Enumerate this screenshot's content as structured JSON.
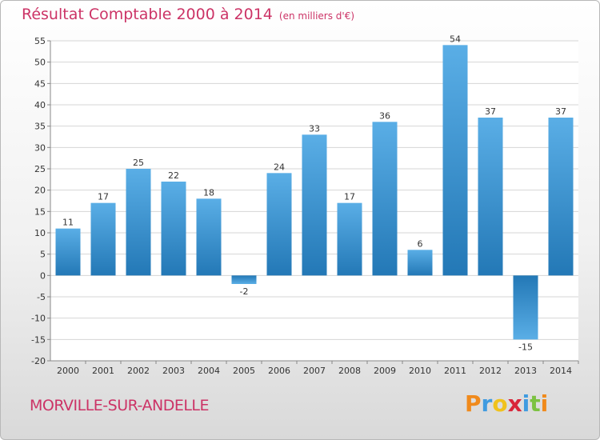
{
  "header": {
    "title": "Résultat Comptable 2000 à 2014",
    "unit": "(en milliers d'€)"
  },
  "footer": {
    "town": "MORVILLE-SUR-ANDELLE",
    "logo": [
      "P",
      "r",
      "o",
      "x",
      "i",
      "t",
      "i"
    ],
    "logo_colors": [
      "#f08a1c",
      "#3f9be0",
      "#f0c21c",
      "#d9263a",
      "#3f9be0",
      "#7cc242",
      "#f08a1c"
    ]
  },
  "colors": {
    "bar_light": "#5aaee6",
    "bar_dark": "#2378b6",
    "grid": "#d6d6d6",
    "axis": "#888888",
    "title": "#cc3366"
  },
  "chart_data": {
    "type": "bar",
    "categories": [
      "2000",
      "2001",
      "2002",
      "2003",
      "2004",
      "2005",
      "2006",
      "2007",
      "2008",
      "2009",
      "2010",
      "2011",
      "2012",
      "2013",
      "2014"
    ],
    "values": [
      11,
      17,
      25,
      22,
      18,
      -2,
      24,
      33,
      17,
      36,
      6,
      54,
      37,
      -15,
      37
    ],
    "data_labels": [
      "11",
      "17",
      "25",
      "22",
      "18",
      "-2",
      "24",
      "33",
      "17",
      "36",
      "6",
      "54",
      "37",
      "-15",
      "37"
    ],
    "ylim": [
      -20,
      55
    ],
    "yticks": [
      -20,
      -15,
      -10,
      -5,
      0,
      5,
      10,
      15,
      20,
      25,
      30,
      35,
      40,
      45,
      50,
      55
    ],
    "grid": true
  }
}
